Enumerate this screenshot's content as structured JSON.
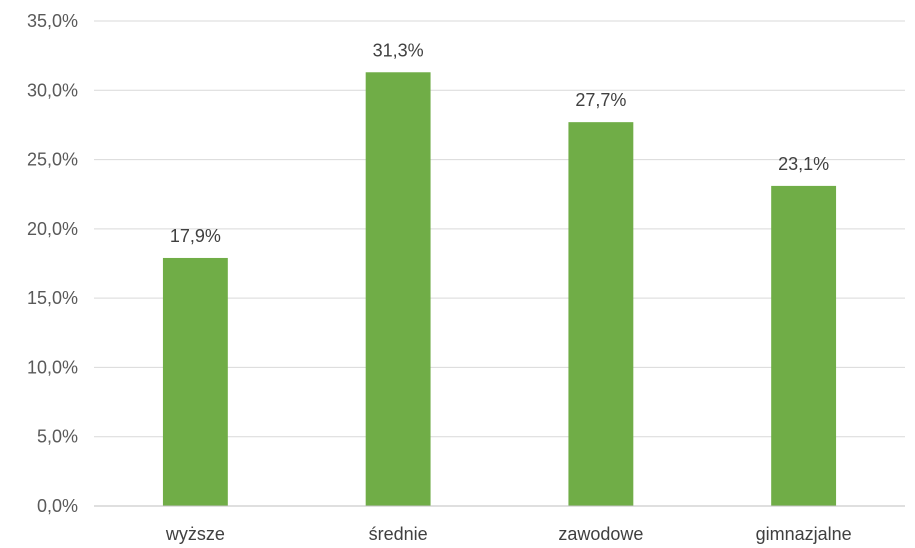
{
  "chart_data": {
    "type": "bar",
    "categories": [
      "wyższe",
      "średnie",
      "zawodowe",
      "gimnazjalne"
    ],
    "values": [
      17.9,
      31.3,
      27.7,
      23.1
    ],
    "data_labels": [
      "17,9%",
      "31,3%",
      "27,7%",
      "23,1%"
    ],
    "yticks": [
      0,
      5,
      10,
      15,
      20,
      25,
      30,
      35
    ],
    "ytick_labels": [
      "0,0%",
      "5,0%",
      "10,0%",
      "15,0%",
      "20,0%",
      "25,0%",
      "30,0%",
      "35,0%"
    ],
    "ylim": [
      0,
      35
    ],
    "grid": true,
    "bar_color": "#70ad47",
    "title": "",
    "xlabel": "",
    "ylabel": ""
  }
}
